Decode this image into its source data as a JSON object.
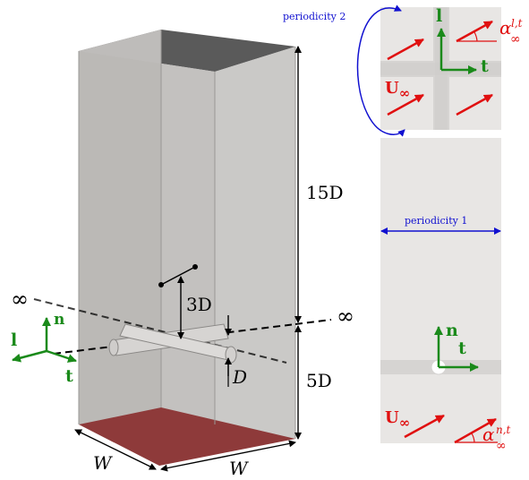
{
  "box": {
    "height_top": "15D",
    "height_bottom": "5D",
    "width_a": "W",
    "width_b": "W",
    "gap": "3D",
    "cyl": "D"
  },
  "infinity": {
    "left": "∞",
    "right": "∞"
  },
  "triad_left": {
    "n": "n",
    "l": "l",
    "t": "t"
  },
  "panel_top": {
    "periodicity": "periodicity 2",
    "l": "l",
    "t": "t",
    "U": "U",
    "U_sub": "∞",
    "alpha": "α",
    "alpha_sub": "∞",
    "alpha_sup": "l,t"
  },
  "panel_bottom": {
    "periodicity": "periodicity 1",
    "n": "n",
    "t": "t",
    "U": "U",
    "U_sub": "∞",
    "alpha": "α",
    "alpha_sub": "∞",
    "alpha_sup": "n,t"
  },
  "colors": {
    "green": "#1a8a1a",
    "red": "#e01010",
    "blue": "#1010d0",
    "box_gray": "#b8b6b4",
    "top_dark": "#5a5a5a",
    "bottom_red": "#8e3a3a",
    "panel_bg": "#e8e6e4"
  }
}
